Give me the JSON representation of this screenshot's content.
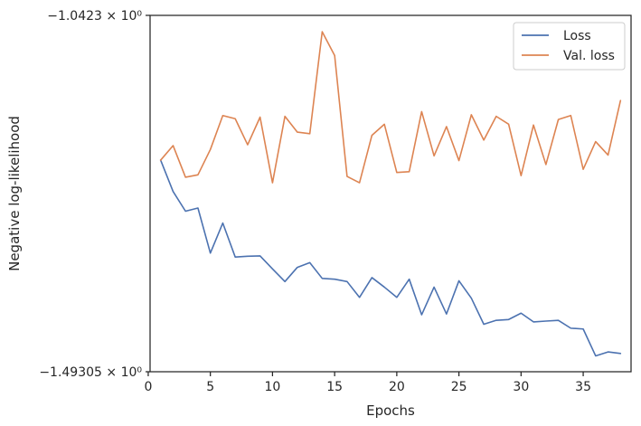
{
  "chart_data": {
    "type": "line",
    "xlabel": "Epochs",
    "ylabel": "Negative log-likelihood",
    "xlim": [
      0.15,
      38.85
    ],
    "ylim": [
      -1.49305,
      -1.0423
    ],
    "x_ticks": [
      0,
      5,
      10,
      15,
      20,
      25,
      30,
      35
    ],
    "y_tick_values": [
      -1.0423,
      -1.49305
    ],
    "y_tick_labels": [
      "−1.0423 × 10⁰",
      "−1.49305 × 10⁰"
    ],
    "grid": false,
    "legend_position": "top-right",
    "x": [
      1,
      2,
      3,
      4,
      5,
      6,
      7,
      8,
      9,
      10,
      11,
      12,
      13,
      14,
      15,
      16,
      17,
      18,
      19,
      20,
      21,
      22,
      23,
      24,
      25,
      26,
      27,
      28,
      29,
      30,
      31,
      32,
      33,
      34,
      35,
      36,
      37,
      38
    ],
    "series": [
      {
        "name": "Loss",
        "color": "#4c72b0",
        "values": [
          -1.2254,
          -1.265,
          -1.29,
          -1.286,
          -1.343,
          -1.305,
          -1.348,
          -1.347,
          -1.3465,
          -1.363,
          -1.379,
          -1.361,
          -1.355,
          -1.375,
          -1.376,
          -1.379,
          -1.399,
          -1.374,
          -1.386,
          -1.399,
          -1.376,
          -1.421,
          -1.386,
          -1.42,
          -1.378,
          -1.4,
          -1.433,
          -1.428,
          -1.427,
          -1.419,
          -1.43,
          -1.429,
          -1.428,
          -1.438,
          -1.439,
          -1.473,
          -1.468,
          -1.47
        ]
      },
      {
        "name": "Val. loss",
        "color": "#dd8452",
        "values": [
          -1.2254,
          -1.207,
          -1.247,
          -1.244,
          -1.212,
          -1.169,
          -1.173,
          -1.206,
          -1.171,
          -1.254,
          -1.17,
          -1.19,
          -1.192,
          -1.063,
          -1.093,
          -1.246,
          -1.254,
          -1.194,
          -1.18,
          -1.241,
          -1.24,
          -1.164,
          -1.22,
          -1.183,
          -1.226,
          -1.168,
          -1.2,
          -1.17,
          -1.18,
          -1.245,
          -1.181,
          -1.231,
          -1.174,
          -1.169,
          -1.237,
          -1.202,
          -1.219,
          -1.15
        ]
      }
    ]
  }
}
